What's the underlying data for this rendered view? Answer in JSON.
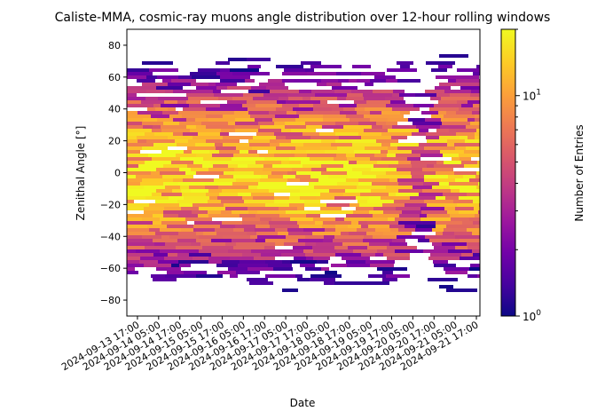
{
  "chart_data": {
    "type": "heatmap",
    "title": "Caliste-MMA, cosmic-ray muons angle distribution over 12-hour rolling windows",
    "xlabel": "Date",
    "ylabel": "Zenithal Angle [°]",
    "x_tick_labels": [
      "2024-09-13 17:00",
      "2024-09-14 05:00",
      "2024-09-14 17:00",
      "2024-09-15 05:00",
      "2024-09-15 17:00",
      "2024-09-16 05:00",
      "2024-09-16 17:00",
      "2024-09-17 05:00",
      "2024-09-17 17:00",
      "2024-09-18 05:00",
      "2024-09-18 17:00",
      "2024-09-19 05:00",
      "2024-09-19 17:00",
      "2024-09-20 05:00",
      "2024-09-20 17:00",
      "2024-09-21 05:00",
      "2024-09-21 17:00"
    ],
    "x_range": [
      "2024-09-13 11:00",
      "2024-09-21 19:00"
    ],
    "y_ticks": [
      -80,
      -60,
      -40,
      -20,
      0,
      20,
      40,
      60,
      80
    ],
    "ylim": [
      -90,
      90
    ],
    "colorbar": {
      "label": "Number of Entries",
      "scale": "log",
      "range": [
        1,
        20
      ],
      "tick_labels": [
        {
          "value": 1,
          "base": "10",
          "exp": "0"
        },
        {
          "value": 10,
          "base": "10",
          "exp": "1"
        }
      ],
      "colormap": "plasma"
    },
    "profile": {
      "description_note": "counts concentrated near 0°, falling off beyond ±40°; gap of low counts around 2024-09-20",
      "peak_count_center": 14,
      "low_count_window": [
        "2024-09-20 03:00",
        "2024-09-20 17:00"
      ]
    },
    "colors": {
      "colormap_stops": [
        "#0d0887",
        "#46039f",
        "#7201a8",
        "#9c179e",
        "#bd3786",
        "#d8576b",
        "#ed7953",
        "#fb9f3a",
        "#fdca26",
        "#f0f921"
      ]
    }
  }
}
